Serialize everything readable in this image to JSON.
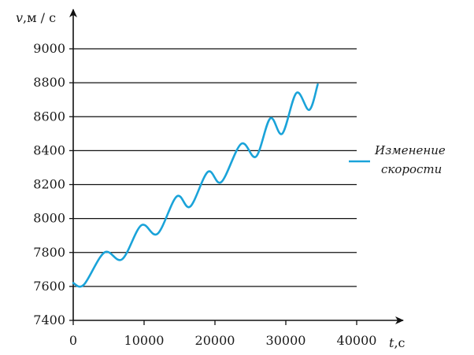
{
  "chart_data": {
    "type": "line",
    "ylabel": {
      "symbol": "v",
      "unit": ",м / с"
    },
    "xlabel": {
      "symbol": "t",
      "unit": ",с"
    },
    "xlim": [
      0,
      40000
    ],
    "ylim": [
      7400,
      9000
    ],
    "x_ticks": [
      "0",
      "10000",
      "20000",
      "30000",
      "40000"
    ],
    "y_ticks": [
      "7400",
      "7600",
      "7800",
      "8000",
      "8200",
      "8400",
      "8600",
      "8800",
      "9000"
    ],
    "grid": "horizontal",
    "legend_position": "right",
    "series": [
      {
        "name_lines": [
          "Изменение",
          "скорости"
        ],
        "color": "#1aa3d9",
        "x": [
          0,
          1500,
          4400,
          6900,
          9600,
          11900,
          14600,
          16500,
          19000,
          20900,
          23700,
          25800,
          27800,
          29500,
          31500,
          33300,
          34500
        ],
        "y": [
          7620,
          7610,
          7800,
          7760,
          7960,
          7910,
          8130,
          8070,
          8275,
          8215,
          8440,
          8365,
          8590,
          8500,
          8740,
          8640,
          8790
        ]
      }
    ]
  }
}
